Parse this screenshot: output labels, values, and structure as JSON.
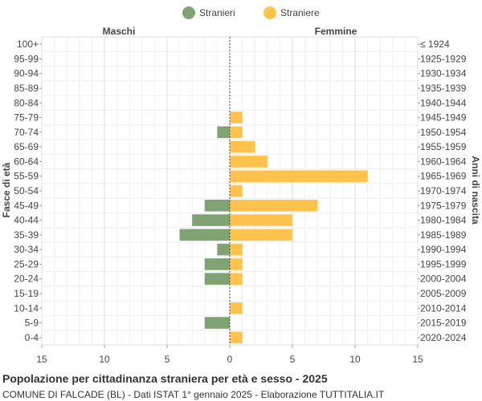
{
  "chart_data": {
    "type": "bar",
    "orientation": "horizontal-population-pyramid",
    "title": "Popolazione per cittadinanza straniera per età e sesso - 2025",
    "subtitle": "COMUNE DI FALCADE (BL) - Dati ISTAT 1° gennaio 2025 - Elaborazione TUTTITALIA.IT",
    "ylabel_left": "Fasce di età",
    "ylabel_right": "Anni di nascita",
    "left_header": "Maschi",
    "right_header": "Femmine",
    "legend_placement": "top-center",
    "xlim": [
      -15,
      15
    ],
    "x_ticks": [
      -15,
      -10,
      -5,
      0,
      5,
      10,
      15
    ],
    "x_tick_labels": [
      "15",
      "10",
      "5",
      "0",
      "5",
      "10",
      "15"
    ],
    "grid": true,
    "categories": [
      "100+",
      "95-99",
      "90-94",
      "85-89",
      "80-84",
      "75-79",
      "70-74",
      "65-69",
      "60-64",
      "55-59",
      "50-54",
      "45-49",
      "40-44",
      "35-39",
      "30-34",
      "25-29",
      "20-24",
      "15-19",
      "10-14",
      "5-9",
      "0-4"
    ],
    "birth_years": [
      "≤ 1924",
      "1925-1929",
      "1930-1934",
      "1935-1939",
      "1940-1944",
      "1945-1949",
      "1950-1954",
      "1955-1959",
      "1960-1964",
      "1965-1969",
      "1970-1974",
      "1975-1979",
      "1980-1984",
      "1985-1989",
      "1990-1994",
      "1995-1999",
      "2000-2004",
      "2005-2009",
      "2010-2014",
      "2015-2019",
      "2020-2024"
    ],
    "series": [
      {
        "name": "Stranieri",
        "color": "#7fa372",
        "side": "left",
        "values": [
          0,
          0,
          0,
          0,
          0,
          0,
          1,
          0,
          0,
          0,
          0,
          2,
          3,
          4,
          1,
          2,
          2,
          0,
          0,
          2,
          0
        ]
      },
      {
        "name": "Straniere",
        "color": "#ffc34d",
        "side": "right",
        "values": [
          0,
          0,
          0,
          0,
          0,
          1,
          1,
          2,
          3,
          11,
          1,
          7,
          5,
          5,
          1,
          1,
          1,
          0,
          1,
          0,
          1
        ]
      }
    ]
  }
}
